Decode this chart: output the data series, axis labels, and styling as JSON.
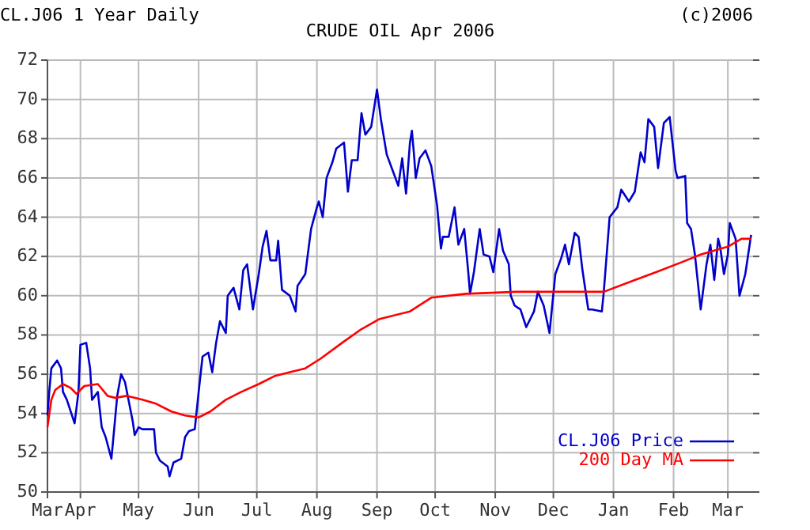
{
  "chart_data": {
    "type": "line",
    "title": "CRUDE OIL Apr 2006",
    "subtitle": "CL.J06 1 Year Daily",
    "annotations": [
      "(c)2006"
    ],
    "xlim": [
      "2005-03-15",
      "2006-03-14"
    ],
    "xticks": [
      {
        "value": "2005-03-15",
        "label": "Mar"
      },
      {
        "value": "2005-04-01",
        "label": "Apr"
      },
      {
        "value": "2005-05-01",
        "label": "May"
      },
      {
        "value": "2005-06-01",
        "label": "Jun"
      },
      {
        "value": "2005-07-01",
        "label": "Jul"
      },
      {
        "value": "2005-08-01",
        "label": "Aug"
      },
      {
        "value": "2005-09-01",
        "label": "Sep"
      },
      {
        "value": "2005-10-01",
        "label": "Oct"
      },
      {
        "value": "2005-11-01",
        "label": "Nov"
      },
      {
        "value": "2005-12-01",
        "label": "Dec"
      },
      {
        "value": "2006-01-01",
        "label": "Jan"
      },
      {
        "value": "2006-02-01",
        "label": "Feb"
      },
      {
        "value": "2006-03-01",
        "label": "Mar"
      }
    ],
    "ylim": [
      50,
      72
    ],
    "yticks": [
      50,
      52,
      54,
      56,
      58,
      60,
      62,
      64,
      66,
      68,
      70,
      72
    ],
    "grid": true,
    "legend": "bottom right",
    "line_style": "solid",
    "series": [
      {
        "name": "CL.J06 Price",
        "color": "#0000cc",
        "x": [
          "2005-03-15",
          "2005-03-16",
          "2005-03-17",
          "2005-03-20",
          "2005-03-22",
          "2005-03-23",
          "2005-03-25",
          "2005-03-29",
          "2005-03-31",
          "2005-04-01",
          "2005-04-04",
          "2005-04-06",
          "2005-04-07",
          "2005-04-10",
          "2005-04-12",
          "2005-04-14",
          "2005-04-17",
          "2005-04-20",
          "2005-04-22",
          "2005-04-24",
          "2005-04-28",
          "2005-04-29",
          "2005-05-01",
          "2005-05-03",
          "2005-05-09",
          "2005-05-10",
          "2005-05-12",
          "2005-05-16",
          "2005-05-17",
          "2005-05-19",
          "2005-05-23",
          "2005-05-25",
          "2005-05-27",
          "2005-05-30",
          "2005-06-01",
          "2005-06-03",
          "2005-06-06",
          "2005-06-08",
          "2005-06-10",
          "2005-06-12",
          "2005-06-15",
          "2005-06-16",
          "2005-06-19",
          "2005-06-22",
          "2005-06-24",
          "2005-06-26",
          "2005-06-29",
          "2005-07-02",
          "2005-07-04",
          "2005-07-06",
          "2005-07-08",
          "2005-07-11",
          "2005-07-12",
          "2005-07-14",
          "2005-07-18",
          "2005-07-21",
          "2005-07-22",
          "2005-07-26",
          "2005-07-29",
          "2005-08-01",
          "2005-08-02",
          "2005-08-04",
          "2005-08-06",
          "2005-08-09",
          "2005-08-11",
          "2005-08-15",
          "2005-08-17",
          "2005-08-19",
          "2005-08-22",
          "2005-08-24",
          "2005-08-26",
          "2005-08-29",
          "2005-09-01",
          "2005-09-03",
          "2005-09-06",
          "2005-09-09",
          "2005-09-12",
          "2005-09-14",
          "2005-09-16",
          "2005-09-18",
          "2005-09-19",
          "2005-09-20",
          "2005-09-21",
          "2005-09-23",
          "2005-09-26",
          "2005-09-29",
          "2005-10-02",
          "2005-10-04",
          "2005-10-05",
          "2005-10-08",
          "2005-10-11",
          "2005-10-13",
          "2005-10-16",
          "2005-10-18",
          "2005-10-19",
          "2005-10-21",
          "2005-10-24",
          "2005-10-26",
          "2005-10-29",
          "2005-10-31",
          "2005-11-03",
          "2005-11-05",
          "2005-11-08",
          "2005-11-09",
          "2005-11-11",
          "2005-11-14",
          "2005-11-17",
          "2005-11-21",
          "2005-11-23",
          "2005-11-26",
          "2005-11-29",
          "2005-12-02",
          "2005-12-05",
          "2005-12-07",
          "2005-12-09",
          "2005-12-12",
          "2005-12-14",
          "2005-12-16",
          "2005-12-19",
          "2005-12-21",
          "2005-12-26",
          "2005-12-27",
          "2005-12-30",
          "2006-01-03",
          "2006-01-05",
          "2006-01-09",
          "2006-01-12",
          "2006-01-15",
          "2006-01-17",
          "2006-01-19",
          "2006-01-22",
          "2006-01-24",
          "2006-01-27",
          "2006-01-30",
          "2006-02-02",
          "2006-02-03",
          "2006-02-07",
          "2006-02-08",
          "2006-02-10",
          "2006-02-12",
          "2006-02-15",
          "2006-02-18",
          "2006-02-20",
          "2006-02-22",
          "2006-02-24",
          "2006-02-25",
          "2006-02-27",
          "2006-03-01",
          "2006-03-02",
          "2006-03-05",
          "2006-03-07",
          "2006-03-10",
          "2006-03-13"
        ],
        "values": [
          53.9,
          55.2,
          56.3,
          56.7,
          56.3,
          55.1,
          54.7,
          53.5,
          55.1,
          57.5,
          57.6,
          56.3,
          54.7,
          55.1,
          53.3,
          52.8,
          51.7,
          54.9,
          56.0,
          55.6,
          53.6,
          52.9,
          53.3,
          53.2,
          53.2,
          52.0,
          51.6,
          51.3,
          50.8,
          51.5,
          51.7,
          52.8,
          53.1,
          53.2,
          55.1,
          56.9,
          57.1,
          56.1,
          57.6,
          58.7,
          58.1,
          60.0,
          60.4,
          59.3,
          61.3,
          61.6,
          59.3,
          61.1,
          62.5,
          63.3,
          61.8,
          61.8,
          62.8,
          60.3,
          60.0,
          59.2,
          60.5,
          61.1,
          63.4,
          64.5,
          64.8,
          64.0,
          66.0,
          66.8,
          67.5,
          67.8,
          65.3,
          66.9,
          66.9,
          69.3,
          68.2,
          68.6,
          70.5,
          69.0,
          67.2,
          66.4,
          65.6,
          67.0,
          65.2,
          67.8,
          68.4,
          67.3,
          66.0,
          67.0,
          67.4,
          66.6,
          64.6,
          62.4,
          63.0,
          63.0,
          64.5,
          62.6,
          63.4,
          61.3,
          60.1,
          61.2,
          63.4,
          62.1,
          62.0,
          61.2,
          63.4,
          62.3,
          61.6,
          60.0,
          59.5,
          59.3,
          58.4,
          59.2,
          60.2,
          59.5,
          58.1,
          61.1,
          61.9,
          62.6,
          61.6,
          63.2,
          63.0,
          61.3,
          59.3,
          59.3,
          59.2,
          60.2,
          64.0,
          64.5,
          65.4,
          64.8,
          65.3,
          67.3,
          66.8,
          69.0,
          68.6,
          66.5,
          68.8,
          69.1,
          66.4,
          66.0,
          66.1,
          63.7,
          63.4,
          62.1,
          59.3,
          61.6,
          62.6,
          60.8,
          62.9,
          62.5,
          61.1,
          62.1,
          63.7,
          62.9,
          60.0,
          61.1,
          63.1
        ]
      },
      {
        "name": "200 Day MA",
        "color": "#ff0000",
        "x": [
          "2005-03-15",
          "2005-03-17",
          "2005-03-19",
          "2005-03-23",
          "2005-03-27",
          "2005-03-30",
          "2005-04-03",
          "2005-04-10",
          "2005-04-15",
          "2005-04-19",
          "2005-04-25",
          "2005-05-03",
          "2005-05-10",
          "2005-05-18",
          "2005-05-25",
          "2005-06-01",
          "2005-06-07",
          "2005-06-15",
          "2005-06-23",
          "2005-07-02",
          "2005-07-10",
          "2005-07-18",
          "2005-07-26",
          "2005-08-03",
          "2005-08-14",
          "2005-08-24",
          "2005-09-02",
          "2005-09-18",
          "2005-09-29",
          "2005-10-17",
          "2005-11-12",
          "2005-12-01",
          "2005-12-27",
          "2006-01-12",
          "2006-01-23",
          "2006-02-05",
          "2006-02-15",
          "2006-03-01",
          "2006-03-08",
          "2006-03-13"
        ],
        "values": [
          53.3,
          54.7,
          55.2,
          55.5,
          55.3,
          55.0,
          55.4,
          55.5,
          54.9,
          54.8,
          54.9,
          54.7,
          54.5,
          54.1,
          53.9,
          53.8,
          54.1,
          54.7,
          55.1,
          55.5,
          55.9,
          56.1,
          56.3,
          56.8,
          57.6,
          58.3,
          58.8,
          59.2,
          59.9,
          60.1,
          60.2,
          60.2,
          60.2,
          60.8,
          61.2,
          61.7,
          62.1,
          62.5,
          62.9,
          62.9
        ]
      }
    ]
  }
}
